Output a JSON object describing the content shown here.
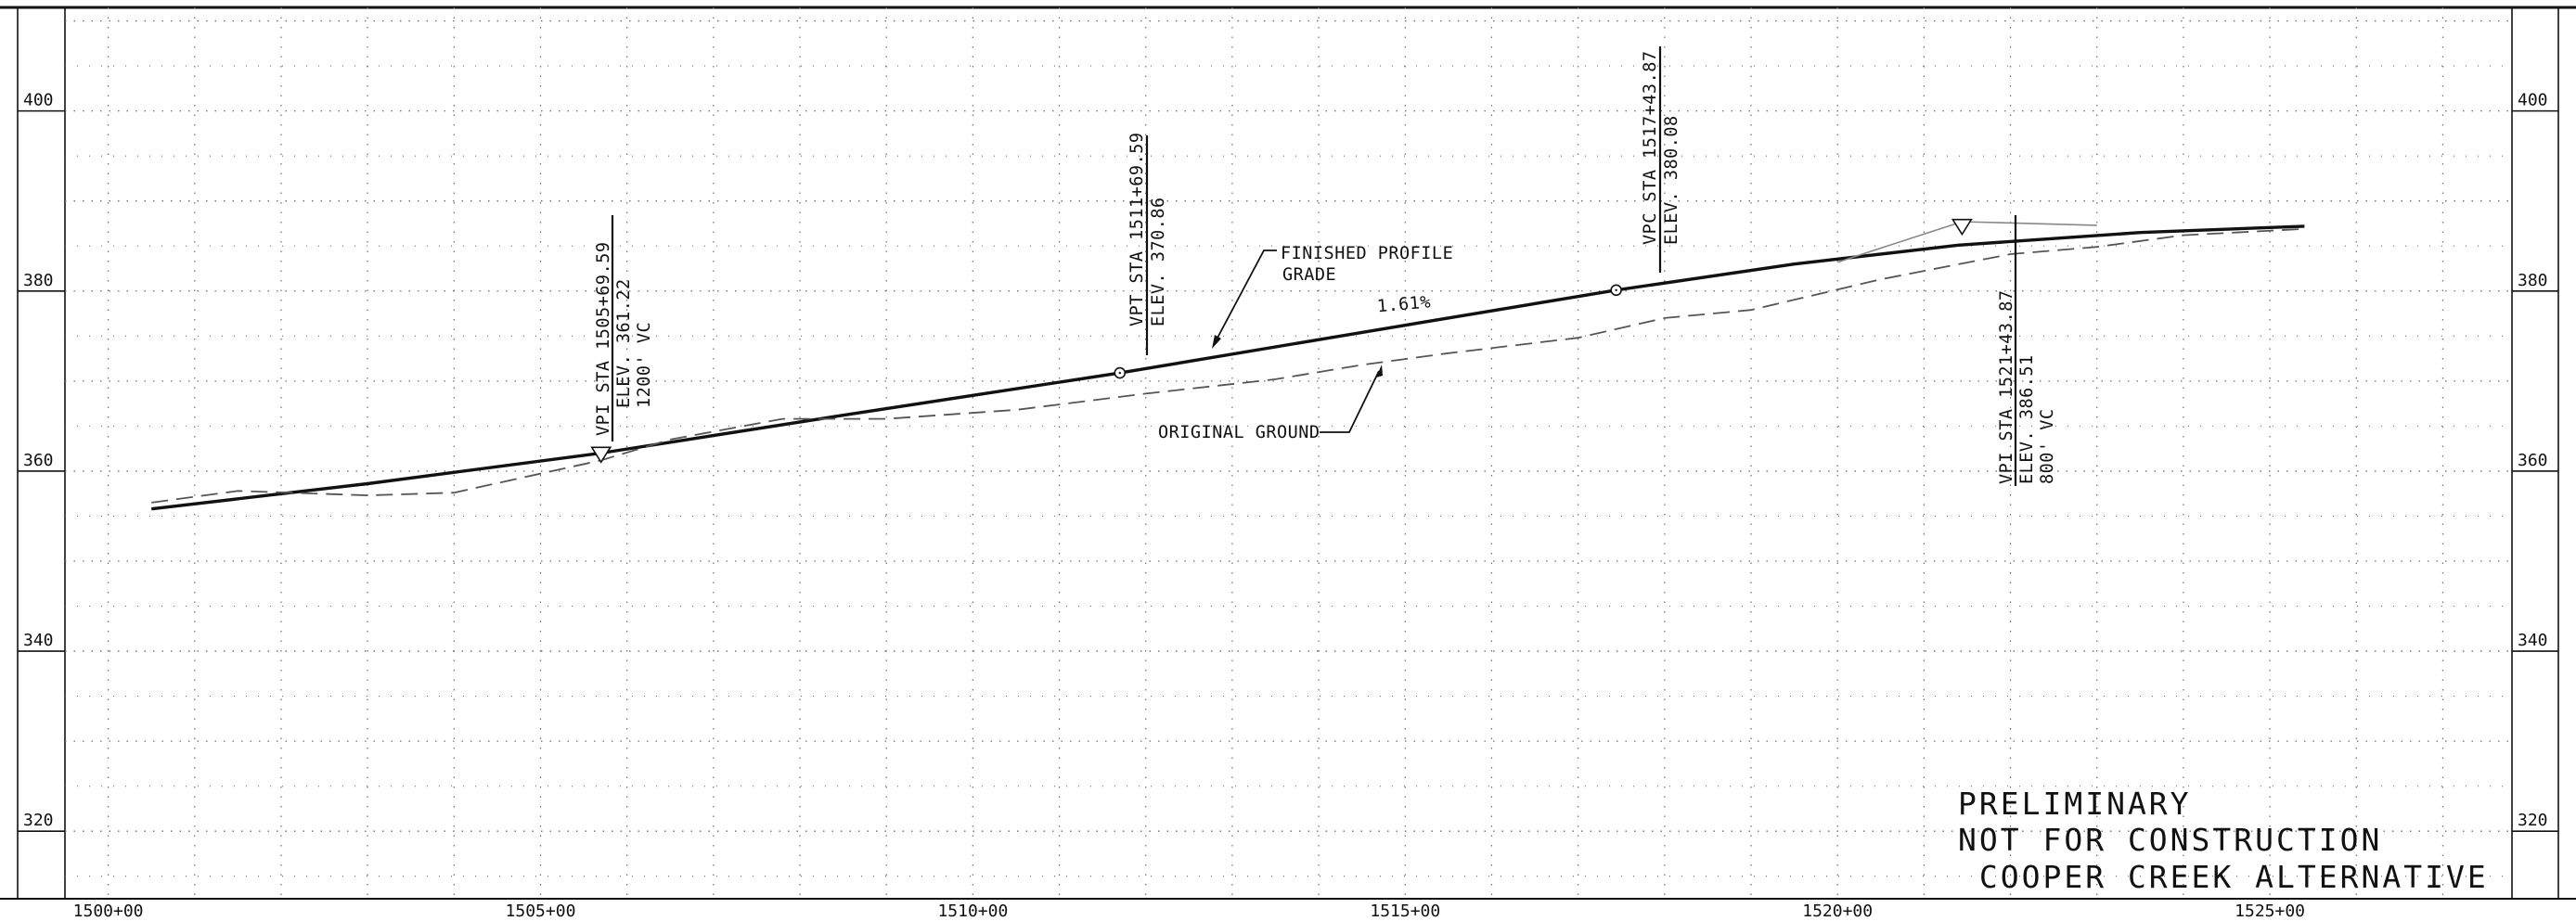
{
  "sheet": {
    "stamp_lines": [
      "PRELIMINARY",
      "NOT FOR CONSTRUCTION",
      " COOPER CREEK ALTERNATIVE"
    ]
  },
  "labels": {
    "finished_profile_line1": "FINISHED PROFILE",
    "finished_profile_line2": "GRADE",
    "original_ground": "ORIGINAL GROUND",
    "grade_percent": "1.61%"
  },
  "vpi1": {
    "line1": "VPI STA 1505+69.59",
    "line2": "ELEV. 361.22",
    "line3": "1200' VC"
  },
  "vpt": {
    "line1": "VPT STA 1511+69.59",
    "line2": "ELEV. 370.86"
  },
  "vpc": {
    "line1": "VPC STA 1517+43.87",
    "line2": "ELEV. 380.08"
  },
  "vpi2": {
    "line1": "VPI STA 1521+43.87",
    "line2": "ELEV. 386.51",
    "line3": "800' VC"
  },
  "colors": {
    "ink": "#111111",
    "grid": "#6e6e6e",
    "ground": "#555555"
  },
  "chart_data": {
    "type": "line",
    "xlim": [
      1499.5,
      1527.8
    ],
    "ylim": [
      312.5,
      411.5
    ],
    "x_ticks": [
      1500,
      1505,
      1510,
      1515,
      1520,
      1525
    ],
    "x_tick_labels": [
      "1500+00",
      "1505+00",
      "1510+00",
      "1515+00",
      "1520+00",
      "1525+00"
    ],
    "y_ticks": [
      320,
      340,
      360,
      380,
      400
    ],
    "y_tick_labels": [
      "320",
      "340",
      "360",
      "380",
      "400"
    ],
    "grid": true,
    "series": [
      {
        "style": "solid",
        "x": [
          1500.5,
          1503.0,
          1505.7,
          1508.5,
          1511.7,
          1514.5,
          1517.44,
          1519.5,
          1521.4,
          1523.5,
          1525.4
        ],
        "y": [
          355.8,
          358.6,
          362.0,
          366.2,
          370.9,
          375.4,
          380.1,
          383.0,
          385.1,
          386.5,
          387.2
        ]
      },
      {
        "style": "dashed",
        "x": [
          1500.5,
          1501.5,
          1503.0,
          1504.0,
          1505.7,
          1506.5,
          1507.8,
          1509.0,
          1510.5,
          1512.0,
          1513.5,
          1514.5,
          1515.5,
          1517.0,
          1518.0,
          1519.0,
          1520.5,
          1521.2,
          1522.0,
          1523.0,
          1524.0,
          1525.4
        ],
        "y": [
          356.5,
          357.8,
          357.3,
          357.6,
          361.2,
          363.5,
          365.8,
          365.8,
          366.8,
          368.6,
          370.2,
          371.8,
          373.1,
          374.8,
          377.0,
          377.9,
          381.3,
          382.6,
          384.1,
          384.9,
          386.2,
          386.9
        ]
      }
    ],
    "points": [
      {
        "label": "VPI STA 1505+69.59",
        "x": 1505.7,
        "y": 361.2,
        "marker": "triangle"
      },
      {
        "label": "VPT STA 1511+69.59",
        "x": 1511.7,
        "y": 370.9,
        "marker": "circle"
      },
      {
        "label": "VPC STA 1517+43.87",
        "x": 1517.44,
        "y": 380.1,
        "marker": "circle"
      },
      {
        "label": "VPI STA 1521+43.87",
        "x": 1521.44,
        "y": 386.5,
        "marker": "triangle"
      }
    ]
  }
}
